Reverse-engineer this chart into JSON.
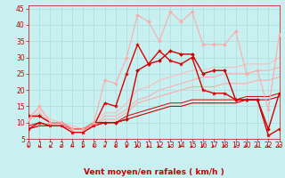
{
  "xlabel": "Vent moyen/en rafales ( km/h )",
  "xlim": [
    0,
    23
  ],
  "ylim": [
    5,
    46
  ],
  "yticks": [
    5,
    10,
    15,
    20,
    25,
    30,
    35,
    40,
    45
  ],
  "xticks": [
    0,
    1,
    2,
    3,
    4,
    5,
    6,
    7,
    8,
    9,
    10,
    11,
    12,
    13,
    14,
    15,
    16,
    17,
    18,
    19,
    20,
    21,
    22,
    23
  ],
  "bg_color": "#c8f0f0",
  "grid_color": "#aadddd",
  "series": [
    {
      "x": [
        0,
        1,
        2,
        3,
        4,
        5,
        6,
        7,
        8,
        9,
        10,
        11,
        12,
        13,
        14,
        15,
        16,
        17,
        18,
        19,
        20,
        21,
        22,
        23
      ],
      "y": [
        12,
        12,
        10,
        10,
        8,
        8,
        10,
        10,
        10,
        11,
        26,
        28,
        29,
        32,
        31,
        31,
        25,
        26,
        26,
        17,
        17,
        17,
        8,
        19
      ],
      "color": "#cc0000",
      "lw": 1.0,
      "marker": "D",
      "ms": 2.0
    },
    {
      "x": [
        0,
        1,
        2,
        3,
        4,
        5,
        6,
        7,
        8,
        9,
        10,
        11,
        12,
        13,
        14,
        15,
        16,
        17,
        18,
        19,
        20,
        21,
        22,
        23
      ],
      "y": [
        8,
        10,
        9,
        9,
        7,
        7,
        9,
        16,
        15,
        25,
        34,
        28,
        32,
        29,
        28,
        30,
        20,
        19,
        19,
        17,
        17,
        17,
        6,
        8
      ],
      "color": "#dd0000",
      "lw": 1.0,
      "marker": "*",
      "ms": 3.0
    },
    {
      "x": [
        0,
        1,
        2,
        3,
        4,
        5,
        6,
        7,
        8,
        9,
        10,
        11,
        12,
        13,
        14,
        15,
        16,
        17,
        18,
        19,
        20,
        21,
        22,
        23
      ],
      "y": [
        11,
        15,
        10,
        10,
        8,
        8,
        10,
        23,
        22,
        30,
        43,
        41,
        35,
        44,
        41,
        44,
        34,
        34,
        34,
        38,
        25,
        26,
        14,
        37
      ],
      "color": "#ffaaaa",
      "lw": 0.8,
      "marker": "D",
      "ms": 2.0
    },
    {
      "x": [
        0,
        1,
        2,
        3,
        4,
        5,
        6,
        7,
        8,
        9,
        10,
        11,
        12,
        13,
        14,
        15,
        16,
        17,
        18,
        19,
        20,
        21,
        22,
        23
      ],
      "y": [
        8,
        9,
        9,
        9,
        8,
        8,
        9,
        10,
        10,
        11,
        12,
        13,
        14,
        15,
        15,
        16,
        16,
        16,
        16,
        16,
        17,
        17,
        17,
        18
      ],
      "color": "#cc0000",
      "lw": 0.8,
      "marker": null,
      "ms": 0
    },
    {
      "x": [
        0,
        1,
        2,
        3,
        4,
        5,
        6,
        7,
        8,
        9,
        10,
        11,
        12,
        13,
        14,
        15,
        16,
        17,
        18,
        19,
        20,
        21,
        22,
        23
      ],
      "y": [
        9,
        10,
        9,
        9,
        8,
        8,
        9,
        10,
        10,
        12,
        13,
        14,
        15,
        16,
        16,
        17,
        17,
        17,
        17,
        17,
        18,
        18,
        18,
        19
      ],
      "color": "#cc0000",
      "lw": 0.7,
      "marker": null,
      "ms": 0
    },
    {
      "x": [
        0,
        1,
        2,
        3,
        4,
        5,
        6,
        7,
        8,
        9,
        10,
        11,
        12,
        13,
        14,
        15,
        16,
        17,
        18,
        19,
        20,
        21,
        22,
        23
      ],
      "y": [
        11,
        12,
        10,
        10,
        8,
        8,
        9,
        11,
        11,
        13,
        16,
        17,
        18,
        19,
        20,
        21,
        21,
        21,
        22,
        22,
        22,
        23,
        23,
        24
      ],
      "color": "#ffaaaa",
      "lw": 0.8,
      "marker": null,
      "ms": 0
    },
    {
      "x": [
        0,
        1,
        2,
        3,
        4,
        5,
        6,
        7,
        8,
        9,
        10,
        11,
        12,
        13,
        14,
        15,
        16,
        17,
        18,
        19,
        20,
        21,
        22,
        23
      ],
      "y": [
        12,
        14,
        11,
        10,
        9,
        8,
        10,
        13,
        13,
        16,
        20,
        21,
        23,
        24,
        25,
        26,
        26,
        27,
        27,
        27,
        28,
        28,
        28,
        30
      ],
      "color": "#ffbbbb",
      "lw": 0.8,
      "marker": null,
      "ms": 0
    },
    {
      "x": [
        0,
        1,
        2,
        3,
        4,
        5,
        6,
        7,
        8,
        9,
        10,
        11,
        12,
        13,
        14,
        15,
        16,
        17,
        18,
        19,
        20,
        21,
        22,
        23
      ],
      "y": [
        11,
        13,
        10,
        9,
        8,
        8,
        9,
        12,
        12,
        14,
        17,
        18,
        20,
        21,
        22,
        23,
        24,
        24,
        25,
        25,
        25,
        26,
        26,
        27
      ],
      "color": "#ffaaaa",
      "lw": 0.7,
      "marker": null,
      "ms": 0
    }
  ],
  "arrow_color": "#cc0000",
  "xlabel_color": "#cc0000",
  "xlabel_fontsize": 6.5,
  "tick_color": "#cc0000",
  "tick_fontsize": 5.5
}
